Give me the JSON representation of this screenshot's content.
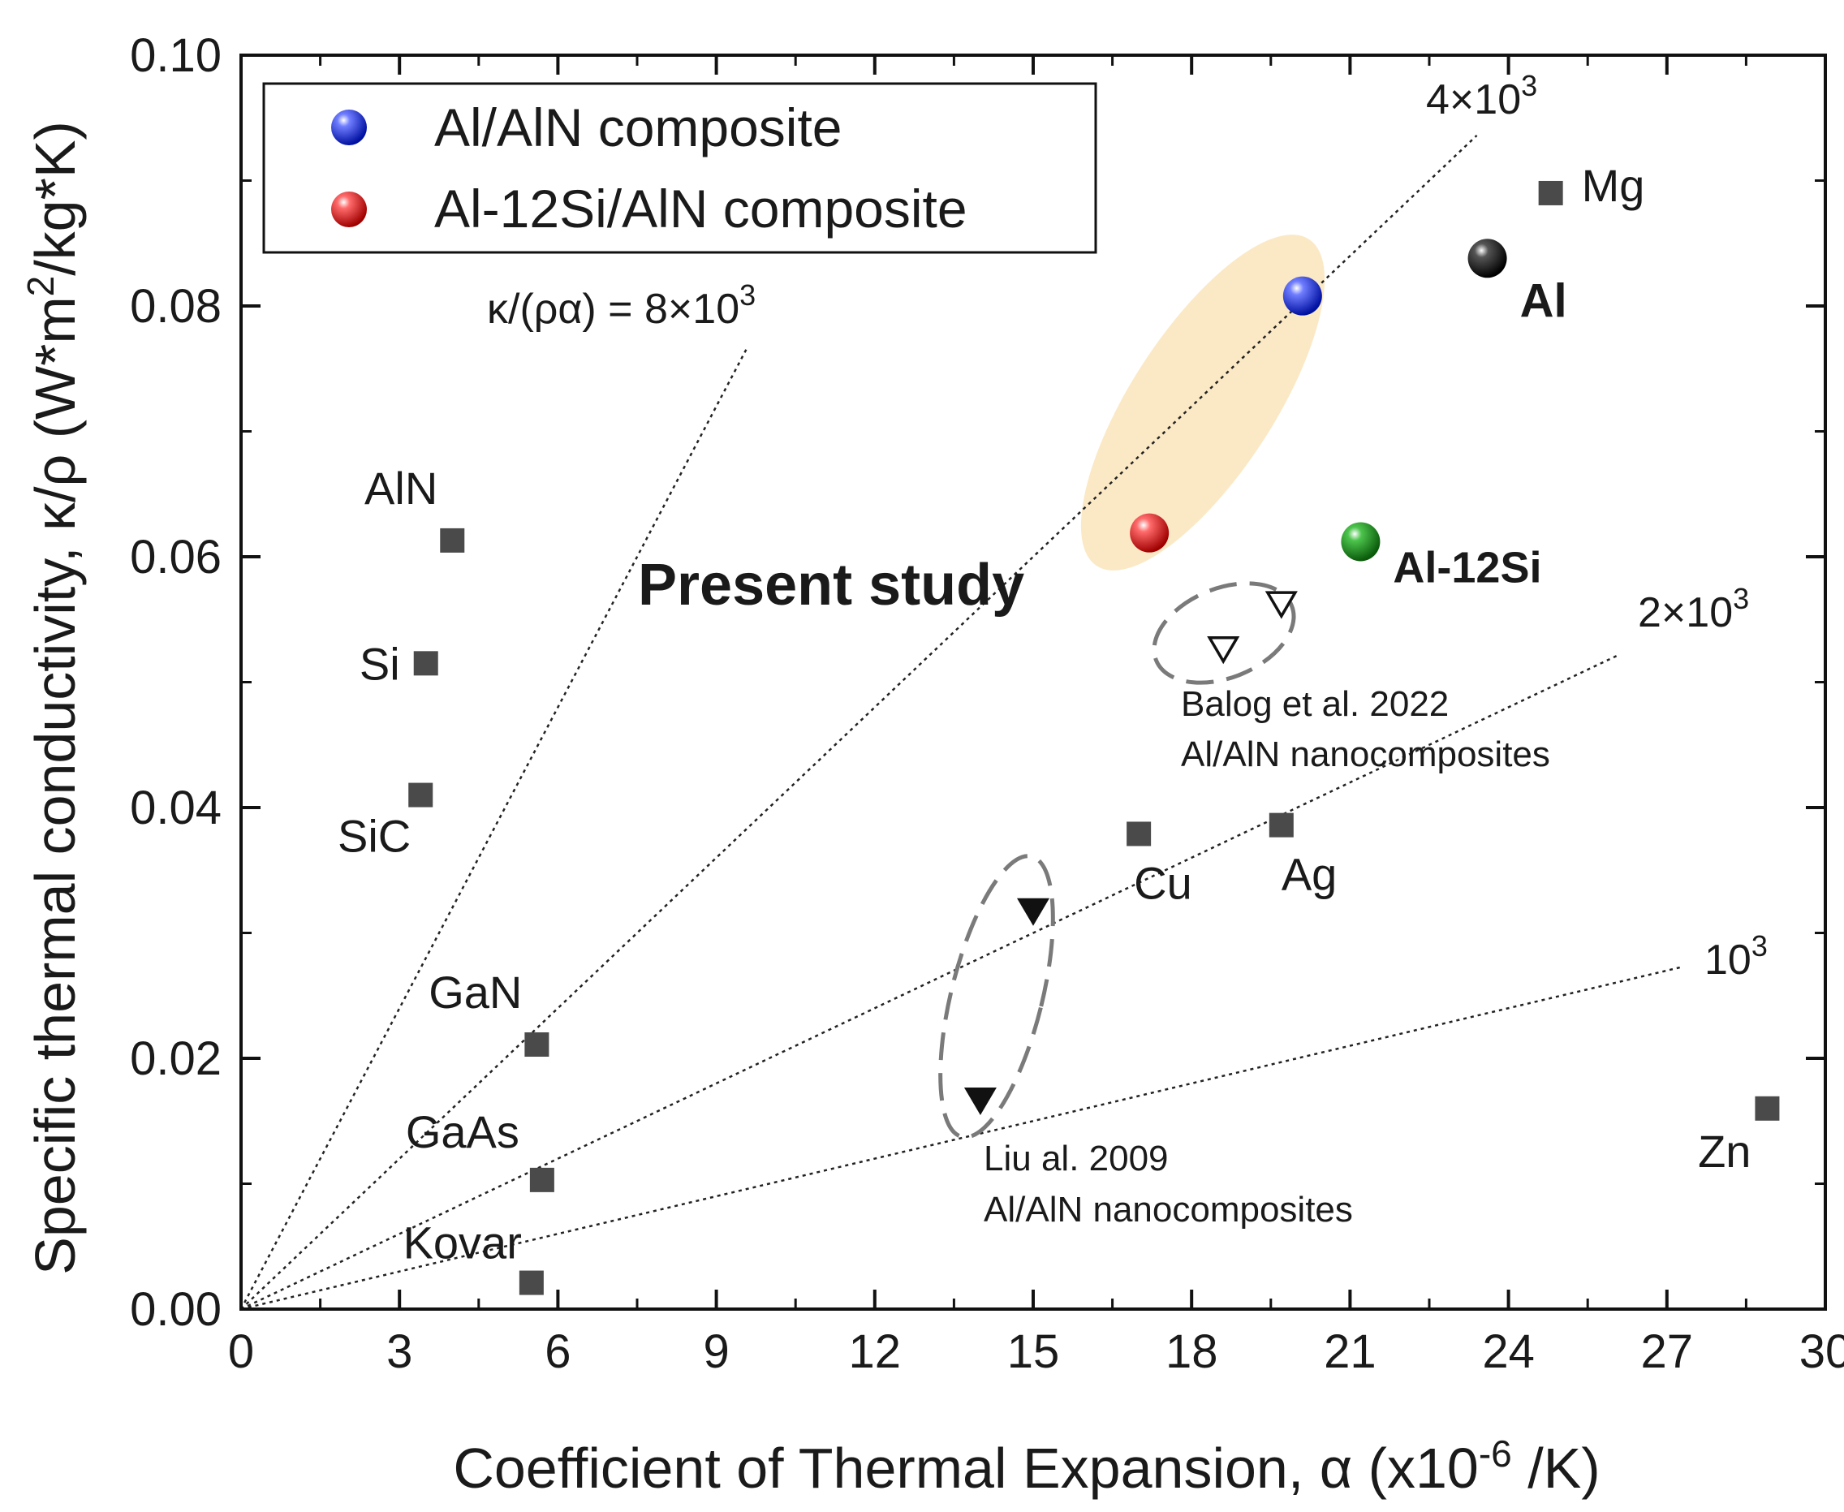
{
  "chart_data": {
    "type": "scatter",
    "xlabel": "Coefficient of Thermal Expansion, α (x10",
    "xlabel_sup": "-6",
    "xlabel_tail": " /K)",
    "ylabel": "Specific thermal conductivity, κ/ρ (W*m",
    "ylabel_sup": "2",
    "ylabel_tail": "/kg*K)",
    "xlim": [
      0,
      30
    ],
    "ylim": [
      0,
      0.1
    ],
    "x_ticks": [
      0,
      3,
      6,
      9,
      12,
      15,
      18,
      21,
      24,
      27,
      30
    ],
    "x_tick_labels": [
      "0",
      "3",
      "6",
      "9",
      "12",
      "15",
      "18",
      "21",
      "24",
      "27",
      "30"
    ],
    "y_ticks": [
      0,
      0.02,
      0.04,
      0.06,
      0.08,
      0.1
    ],
    "y_tick_labels": [
      "0.00",
      "0.02",
      "0.04",
      "0.06",
      "0.08",
      "0.10"
    ],
    "legend": [
      {
        "label": "Al/AlN composite",
        "color": "#1428e6"
      },
      {
        "label": "Al-12Si/AlN composite",
        "color": "#e61414"
      }
    ],
    "ratio_lines": [
      {
        "ratio": 8000,
        "label": "κ/(ρα) = 8×10",
        "sup": "3",
        "x_end": 9.6
      },
      {
        "ratio": 4000,
        "label": "4×10",
        "sup": "3",
        "x_end": 23.4
      },
      {
        "ratio": 2000,
        "label": "2×10",
        "sup": "3",
        "x_end": 26.1
      },
      {
        "ratio": 1000,
        "label": "10",
        "sup": "3",
        "x_end": 27.3
      }
    ],
    "reference_materials": [
      {
        "name": "AlN",
        "x": 4.0,
        "y": 0.0613
      },
      {
        "name": "Si",
        "x": 3.5,
        "y": 0.0515
      },
      {
        "name": "SiC",
        "x": 3.4,
        "y": 0.041
      },
      {
        "name": "GaN",
        "x": 5.6,
        "y": 0.0211
      },
      {
        "name": "GaAs",
        "x": 5.7,
        "y": 0.0103
      },
      {
        "name": "Kovar",
        "x": 5.5,
        "y": 0.0021
      },
      {
        "name": "Cu",
        "x": 17.0,
        "y": 0.0379
      },
      {
        "name": "Ag",
        "x": 19.7,
        "y": 0.0386
      },
      {
        "name": "Mg",
        "x": 24.8,
        "y": 0.089
      },
      {
        "name": "Zn",
        "x": 28.9,
        "y": 0.016
      }
    ],
    "sphere_points": [
      {
        "name": "Al/AlN composite",
        "x": 20.1,
        "y": 0.0808,
        "color": "#1428e6",
        "label": ""
      },
      {
        "name": "Al-12Si/AlN composite",
        "x": 17.2,
        "y": 0.0619,
        "color": "#e61414",
        "label": ""
      },
      {
        "name": "Al",
        "x": 23.6,
        "y": 0.0838,
        "color": "#111111",
        "label": "Al"
      },
      {
        "name": "Al-12Si",
        "x": 21.2,
        "y": 0.0612,
        "color": "#1a8a1a",
        "label": "Al-12Si"
      }
    ],
    "balog_points": [
      {
        "x": 18.6,
        "y": 0.0527
      },
      {
        "x": 19.7,
        "y": 0.0563
      }
    ],
    "liu_points": [
      {
        "x": 15.0,
        "y": 0.0318
      },
      {
        "x": 14.0,
        "y": 0.0167
      }
    ],
    "annotations": {
      "present_study": "Present study",
      "balog_line1": "Balog et al. 2022",
      "balog_line2": "Al/AlN  nanocomposites",
      "liu_line1": "Liu al. 2009",
      "liu_line2": "Al/AlN  nanocomposites"
    },
    "colors": {
      "square": "#4a4a4a",
      "highlight": "#fbe9c6",
      "present_study": "#e61414",
      "al12si_label": "#1a8a1a"
    }
  }
}
